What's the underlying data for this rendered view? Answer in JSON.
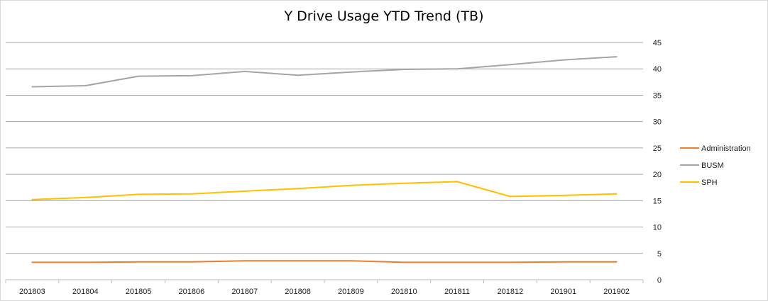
{
  "chart_data": {
    "type": "line",
    "title": "Y Drive Usage YTD Trend (TB)",
    "xlabel": "",
    "ylabel": "",
    "categories": [
      "201803",
      "201804",
      "201805",
      "201806",
      "201807",
      "201808",
      "201809",
      "201810",
      "201811",
      "201812",
      "201901",
      "201902"
    ],
    "ylim": [
      0,
      45
    ],
    "yticks": [
      0,
      5,
      10,
      15,
      20,
      25,
      30,
      35,
      40,
      45
    ],
    "y_axis_side": "right",
    "grid": "horizontal",
    "legend_position": "right",
    "series": [
      {
        "name": "Administration",
        "color": "#ED7D31",
        "values": [
          3.3,
          3.3,
          3.4,
          3.4,
          3.6,
          3.6,
          3.6,
          3.3,
          3.3,
          3.3,
          3.4,
          3.4
        ]
      },
      {
        "name": "BUSM",
        "color": "#A5A5A5",
        "values": [
          36.6,
          36.8,
          38.6,
          38.7,
          39.5,
          38.8,
          39.4,
          39.9,
          40.0,
          40.8,
          41.7,
          42.3
        ]
      },
      {
        "name": "SPH",
        "color": "#FFC000",
        "values": [
          15.2,
          15.6,
          16.2,
          16.3,
          16.8,
          17.3,
          17.9,
          18.3,
          18.6,
          15.8,
          16.0,
          16.3
        ]
      }
    ]
  }
}
